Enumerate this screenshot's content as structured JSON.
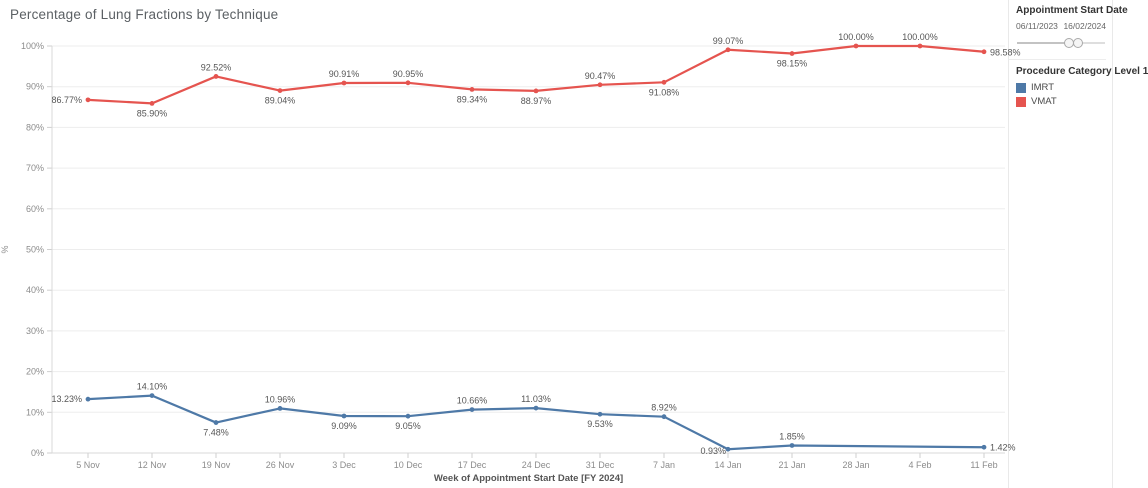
{
  "title": "Percentage of Lung Fractions by Technique",
  "filter_panel": {
    "filter_title": "Appointment Start Date",
    "start_date": "06/11/2023",
    "end_date": "16/02/2024",
    "slider_handles_pct": [
      59,
      69
    ]
  },
  "legend_panel": {
    "legend_title": "Procedure Category Level 1",
    "items": [
      {
        "label": "IMRT",
        "color": "#4e79a7"
      },
      {
        "label": "VMAT",
        "color": "#e5544f"
      }
    ]
  },
  "chart_data": {
    "type": "line",
    "title": "Percentage of Lung Fractions by Technique",
    "xlabel": "Week of Appointment Start Date [FY 2024]",
    "ylabel": "%",
    "ylim": [
      0,
      100
    ],
    "ytick_step": 10,
    "grid": "horizontal",
    "legend_position": "right-panel",
    "categories": [
      "5 Nov",
      "12 Nov",
      "19 Nov",
      "26 Nov",
      "3 Dec",
      "10 Dec",
      "17 Dec",
      "24 Dec",
      "31 Dec",
      "7 Jan",
      "14 Jan",
      "21 Jan",
      "28 Jan",
      "4 Feb",
      "11 Feb"
    ],
    "series": [
      {
        "name": "IMRT",
        "color": "#4e79a7",
        "values": [
          13.23,
          14.1,
          7.48,
          10.96,
          9.09,
          9.05,
          10.66,
          11.03,
          9.53,
          8.92,
          0.93,
          1.85,
          null,
          null,
          1.42
        ],
        "labels": [
          "13.23%",
          "14.10%",
          "7.48%",
          "10.96%",
          "9.09%",
          "9.05%",
          "10.66%",
          "11.03%",
          "9.53%",
          "8.92%",
          "0.93%",
          "1.85%",
          null,
          null,
          "1.42%"
        ],
        "label_side": [
          "left",
          "above",
          "below",
          "above",
          "below",
          "below",
          "above",
          "above",
          "below",
          "above",
          "left-below",
          "above",
          null,
          null,
          "right"
        ]
      },
      {
        "name": "VMAT",
        "color": "#e5544f",
        "values": [
          86.77,
          85.9,
          92.52,
          89.04,
          90.91,
          90.95,
          89.34,
          88.97,
          90.47,
          91.08,
          99.07,
          98.15,
          100.0,
          100.0,
          98.58
        ],
        "labels": [
          "86.77%",
          "85.90%",
          "92.52%",
          "89.04%",
          "90.91%",
          "90.95%",
          "89.34%",
          "88.97%",
          "90.47%",
          "91.08%",
          "99.07%",
          "98.15%",
          "100.00%",
          "100.00%",
          "98.58%"
        ],
        "label_side": [
          "left",
          "below",
          "above",
          "below",
          "above",
          "above",
          "below",
          "below",
          "above",
          "below",
          "above",
          "below",
          "above",
          "above",
          "right"
        ]
      }
    ]
  }
}
